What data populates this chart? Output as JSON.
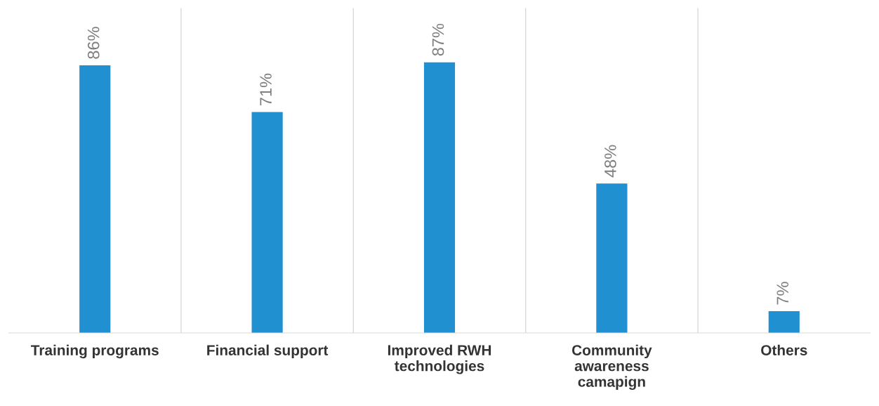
{
  "chart_data": {
    "type": "bar",
    "categories": [
      "Training programs",
      "Financial support",
      "Improved RWH\ntechnologies",
      "Community\nawareness\ncamapign",
      "Others"
    ],
    "values": [
      86,
      71,
      87,
      48,
      7
    ],
    "color": "#2190d0",
    "value_labels": [
      "86%",
      "71%",
      "87%",
      "48%",
      "7%"
    ],
    "grid": "x",
    "legend": false
  }
}
